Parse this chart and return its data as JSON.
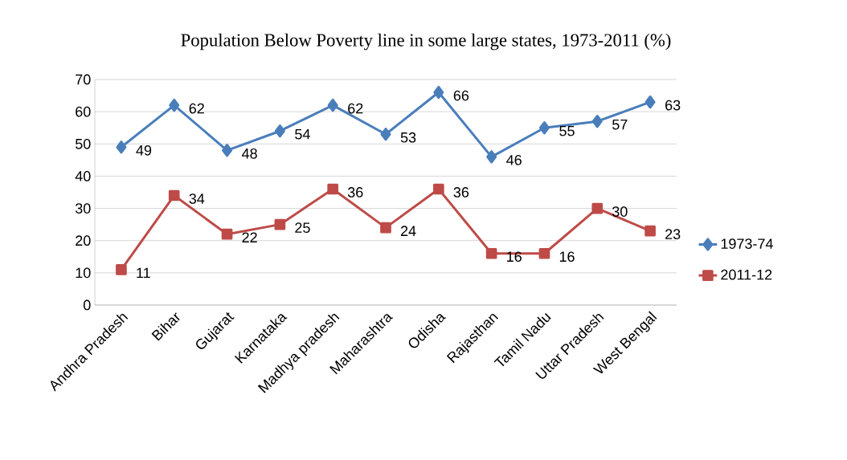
{
  "chart_data": {
    "type": "line",
    "title": "Population Below Poverty line in some large states, 1973-2011 (%)",
    "categories": [
      "Andhra Pradesh",
      "Bihar",
      "Gujarat",
      "Karnataka",
      "Madhya pradesh",
      "Maharashtra",
      "Odisha",
      "Rajasthan",
      "Tamil Nadu",
      "Uttar Pradesh",
      "West Bengal"
    ],
    "series": [
      {
        "name": "1973-74",
        "color": "#4a7ebb",
        "marker": "diamond",
        "values": [
          49,
          62,
          48,
          54,
          62,
          53,
          66,
          46,
          55,
          57,
          63
        ]
      },
      {
        "name": "2011-12",
        "color": "#be4b48",
        "marker": "square",
        "values": [
          11,
          34,
          22,
          25,
          36,
          24,
          36,
          16,
          16,
          30,
          23
        ]
      }
    ],
    "ylim": [
      0,
      70
    ],
    "yticks": [
      0,
      10,
      20,
      30,
      40,
      50,
      60,
      70
    ],
    "grid": "y",
    "legend": "right",
    "data_labels": true,
    "line_style": "solid"
  }
}
